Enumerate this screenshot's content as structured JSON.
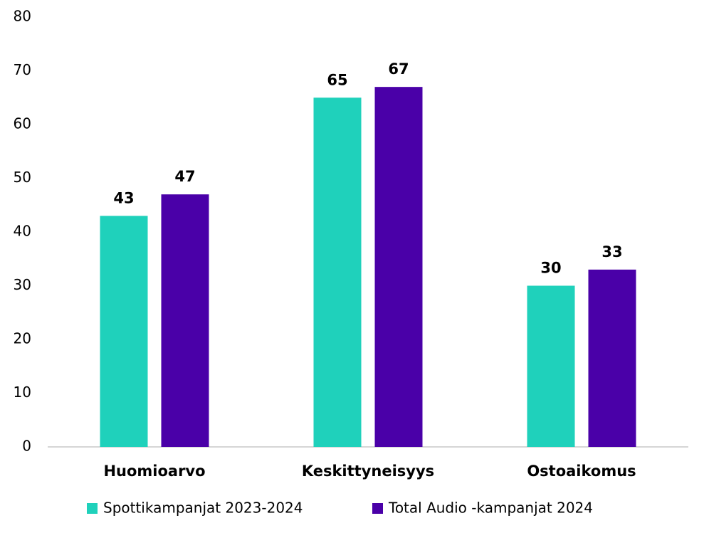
{
  "chart_data": {
    "type": "bar",
    "categories": [
      "Huomioarvo",
      "Keskittyneisyys",
      "Ostoaikomus"
    ],
    "series": [
      {
        "name": "Spottikampanjat 2023-2024",
        "color": "#1fd1bb",
        "values": [
          43,
          65,
          30
        ]
      },
      {
        "name": "Total Audio -kampanjat 2024",
        "color": "#4a00a8",
        "values": [
          47,
          67,
          33
        ]
      }
    ],
    "ylim": [
      0,
      80
    ],
    "yticks": [
      0,
      10,
      20,
      30,
      40,
      50,
      60,
      70,
      80
    ],
    "grid": false,
    "legend": "bottom"
  }
}
